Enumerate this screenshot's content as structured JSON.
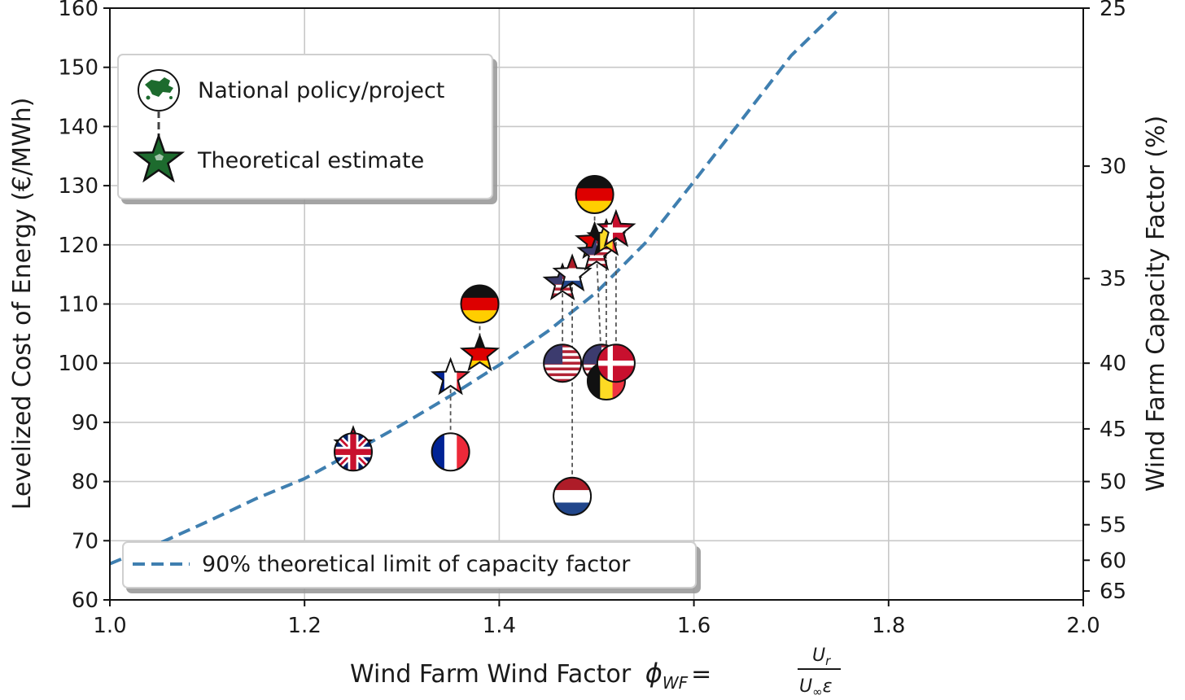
{
  "chart_data": {
    "type": "scatter",
    "xlabel": "Wind Farm Wind Factor",
    "xlabel_symbol": "ϕ",
    "xlabel_subscript": "WF",
    "xlabel_equals": "=",
    "xlabel_fraction_numerator": "U",
    "xlabel_fraction_numerator_sub": "r",
    "xlabel_fraction_denominator": "U",
    "xlabel_fraction_denominator_sub": "∞",
    "xlabel_fraction_denominator_tail": "ε",
    "ylabel": "Levelized Cost of Energy (€/MWh)",
    "y2label": "Wind Farm Capacity Factor (%)",
    "xlim": [
      1.0,
      2.0
    ],
    "ylim": [
      60,
      160
    ],
    "x_ticks": [
      1.0,
      1.2,
      1.4,
      1.6,
      1.8,
      2.0
    ],
    "x_tick_labels": [
      "1.0",
      "1.2",
      "1.4",
      "1.6",
      "1.8",
      "2.0"
    ],
    "y_ticks": [
      60,
      70,
      80,
      90,
      100,
      110,
      120,
      130,
      140,
      150,
      160
    ],
    "y_tick_labels": [
      "60",
      "70",
      "80",
      "90",
      "100",
      "110",
      "120",
      "130",
      "140",
      "150",
      "160"
    ],
    "y2_ticks": [
      {
        "label": "25",
        "lcoe": 160
      },
      {
        "label": "30",
        "lcoe": 133.3
      },
      {
        "label": "35",
        "lcoe": 114.3
      },
      {
        "label": "40",
        "lcoe": 100
      },
      {
        "label": "45",
        "lcoe": 88.9
      },
      {
        "label": "50",
        "lcoe": 80
      },
      {
        "label": "55",
        "lcoe": 72.7
      },
      {
        "label": "60",
        "lcoe": 66.7
      },
      {
        "label": "65",
        "lcoe": 61.5
      }
    ],
    "grid": true,
    "curve": {
      "name": "90% theoretical limit of capacity factor",
      "style": "dashed",
      "color": "#3f7fb0",
      "points": [
        [
          1.0,
          66.1
        ],
        [
          1.05,
          69.5
        ],
        [
          1.1,
          73.2
        ],
        [
          1.15,
          77.1
        ],
        [
          1.2,
          80.5
        ],
        [
          1.25,
          85.0
        ],
        [
          1.3,
          89.6
        ],
        [
          1.35,
          94.5
        ],
        [
          1.4,
          99.7
        ],
        [
          1.45,
          105.4
        ],
        [
          1.5,
          112.0
        ],
        [
          1.55,
          120.3
        ],
        [
          1.6,
          130.7
        ],
        [
          1.65,
          141.3
        ],
        [
          1.7,
          152.0
        ],
        [
          1.75,
          160.0
        ]
      ]
    },
    "legend_top": {
      "placement": "upper-left",
      "entries": [
        {
          "label": "National policy/project",
          "marker": "circle-map"
        },
        {
          "label": "Theoretical estimate",
          "marker": "star-map"
        }
      ]
    },
    "legend_bottom": {
      "placement": "lower-left",
      "entries": [
        {
          "label": "90% theoretical limit of capacity factor",
          "marker": "dashed-line"
        }
      ]
    },
    "pairs": [
      {
        "country": "UK",
        "policy": [
          1.25,
          85.0
        ],
        "estimate": [
          1.25,
          86.0
        ]
      },
      {
        "country": "France",
        "policy": [
          1.35,
          85.0
        ],
        "estimate": [
          1.35,
          97.5
        ]
      },
      {
        "country": "Germany",
        "policy": [
          1.38,
          110.0
        ],
        "estimate": [
          1.38,
          101.5
        ]
      },
      {
        "country": "USA",
        "policy": [
          1.465,
          100.0
        ],
        "estimate": [
          1.465,
          113.5
        ]
      },
      {
        "country": "Netherlands",
        "policy": [
          1.475,
          77.5
        ],
        "estimate": [
          1.475,
          115.0
        ]
      },
      {
        "country": "Germany",
        "policy": [
          1.498,
          128.5
        ],
        "estimate": [
          1.498,
          120.5
        ]
      },
      {
        "country": "USA",
        "policy": [
          1.505,
          100.0
        ],
        "estimate": [
          1.5,
          118.5
        ]
      },
      {
        "country": "Belgium",
        "policy": [
          1.51,
          97.0
        ],
        "estimate": [
          1.51,
          121.0
        ]
      },
      {
        "country": "Denmark",
        "policy": [
          1.52,
          100.0
        ],
        "estimate": [
          1.52,
          122.5
        ]
      }
    ],
    "flag_colors": {
      "germany": [
        "#111111",
        "#dd0000",
        "#ffce00"
      ],
      "france": [
        "#002395",
        "#ffffff",
        "#ed2939"
      ],
      "netherlands": [
        "#ae1c28",
        "#ffffff",
        "#21468b"
      ],
      "belgium": [
        "#111111",
        "#fdda24",
        "#ef3340"
      ],
      "usa": [
        "#b22234",
        "#ffffff",
        "#3c3b6e"
      ],
      "uk": [
        "#012169",
        "#ffffff",
        "#c8102e"
      ],
      "denmark": [
        "#c8102e",
        "#ffffff"
      ]
    }
  }
}
